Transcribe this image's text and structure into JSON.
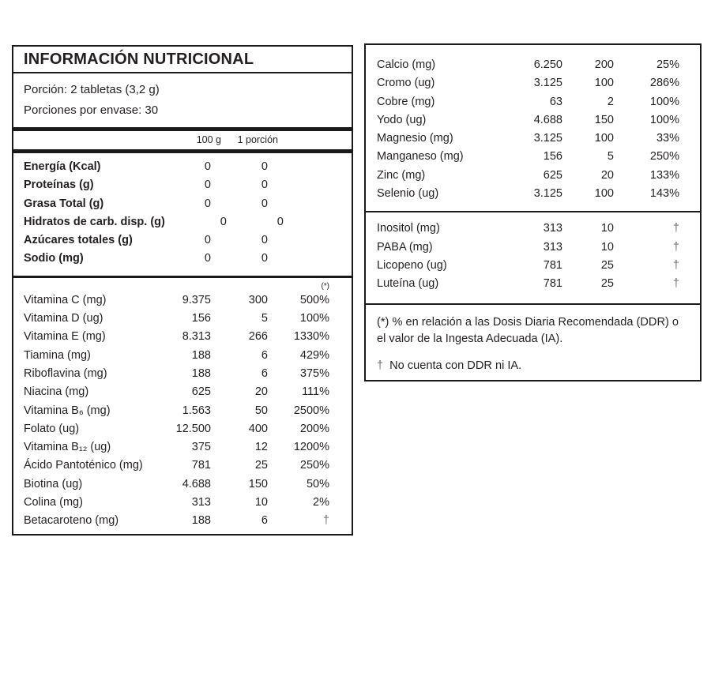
{
  "colors": {
    "text": "#231f20",
    "border": "#1a1a1a",
    "dagger": "#6d6e71",
    "background": "#ffffff"
  },
  "left_panel": {
    "title": "INFORMACIÓN NUTRICIONAL",
    "serving": {
      "line1": "Porción: 2 tabletas (3,2 g)",
      "line2": "Porciones por envase: 30"
    },
    "columns": {
      "per_100g": "100 g",
      "per_portion": "1 porción",
      "pct_marker": "(*)"
    },
    "basic_rows": [
      {
        "label": "Energía (Kcal)",
        "v100": "0",
        "vportion": "0"
      },
      {
        "label": "Proteínas (g)",
        "v100": "0",
        "vportion": "0"
      },
      {
        "label": "Grasa Total (g)",
        "v100": "0",
        "vportion": "0"
      },
      {
        "label": "Hidratos de carb. disp. (g)",
        "v100": "0",
        "vportion": "0"
      },
      {
        "label": "Azúcares totales (g)",
        "v100": "0",
        "vportion": "0"
      },
      {
        "label": "Sodio (mg)",
        "v100": "0",
        "vportion": "0"
      }
    ],
    "vitamin_rows": [
      {
        "label": "Vitamina C (mg)",
        "v100": "9.375",
        "vportion": "300",
        "pct": "500%"
      },
      {
        "label": "Vitamina D (ug)",
        "v100": "156",
        "vportion": "5",
        "pct": "100%"
      },
      {
        "label": "Vitamina E (mg)",
        "v100": "8.313",
        "vportion": "266",
        "pct": "1330%"
      },
      {
        "label": "Tiamina (mg)",
        "v100": "188",
        "vportion": "6",
        "pct": "429%"
      },
      {
        "label": "Riboflavina (mg)",
        "v100": "188",
        "vportion": "6",
        "pct": "375%"
      },
      {
        "label": "Niacina (mg)",
        "v100": "625",
        "vportion": "20",
        "pct": "111%"
      },
      {
        "label": "Vitamina B₆ (mg)",
        "v100": "1.563",
        "vportion": "50",
        "pct": "2500%"
      },
      {
        "label": "Folato (ug)",
        "v100": "12.500",
        "vportion": "400",
        "pct": "200%"
      },
      {
        "label": "Vitamina B₁₂ (ug)",
        "v100": "375",
        "vportion": "12",
        "pct": "1200%"
      },
      {
        "label": "Ácido Pantoténico (mg)",
        "v100": "781",
        "vportion": "25",
        "pct": "250%"
      },
      {
        "label": "Biotina (ug)",
        "v100": "4.688",
        "vportion": "150",
        "pct": "50%"
      },
      {
        "label": "Colina (mg)",
        "v100": "313",
        "vportion": "10",
        "pct": "2%"
      },
      {
        "label": "Betacaroteno (mg)",
        "v100": "188",
        "vportion": "6",
        "pct": "†"
      }
    ]
  },
  "right_panel": {
    "mineral_rows": [
      {
        "label": "Calcio (mg)",
        "v100": "6.250",
        "vportion": "200",
        "pct": "25%"
      },
      {
        "label": "Cromo (ug)",
        "v100": "3.125",
        "vportion": "100",
        "pct": "286%"
      },
      {
        "label": "Cobre (mg)",
        "v100": "63",
        "vportion": "2",
        "pct": "100%"
      },
      {
        "label": "Yodo (ug)",
        "v100": "4.688",
        "vportion": "150",
        "pct": "100%"
      },
      {
        "label": "Magnesio (mg)",
        "v100": "3.125",
        "vportion": "100",
        "pct": "33%"
      },
      {
        "label": "Manganeso (mg)",
        "v100": "156",
        "vportion": "5",
        "pct": "250%"
      },
      {
        "label": "Zinc (mg)",
        "v100": "625",
        "vportion": "20",
        "pct": "133%"
      },
      {
        "label": "Selenio (ug)",
        "v100": "3.125",
        "vportion": "100",
        "pct": "143%"
      }
    ],
    "other_rows": [
      {
        "label": "Inositol (mg)",
        "v100": "313",
        "vportion": "10",
        "pct": "†"
      },
      {
        "label": "PABA (mg)",
        "v100": "313",
        "vportion": "10",
        "pct": "†"
      },
      {
        "label": "Licopeno (ug)",
        "v100": "781",
        "vportion": "25",
        "pct": "†"
      },
      {
        "label": "Luteína (ug)",
        "v100": "781",
        "vportion": "25",
        "pct": "†"
      }
    ],
    "footnotes": {
      "asterisk_note": "(*) % en relación a las Dosis Diaria Recomendada (DDR) o el valor de la Ingesta Adecuada (IA).",
      "dagger_symbol": "†",
      "dagger_note": "No cuenta con DDR ni IA."
    }
  }
}
